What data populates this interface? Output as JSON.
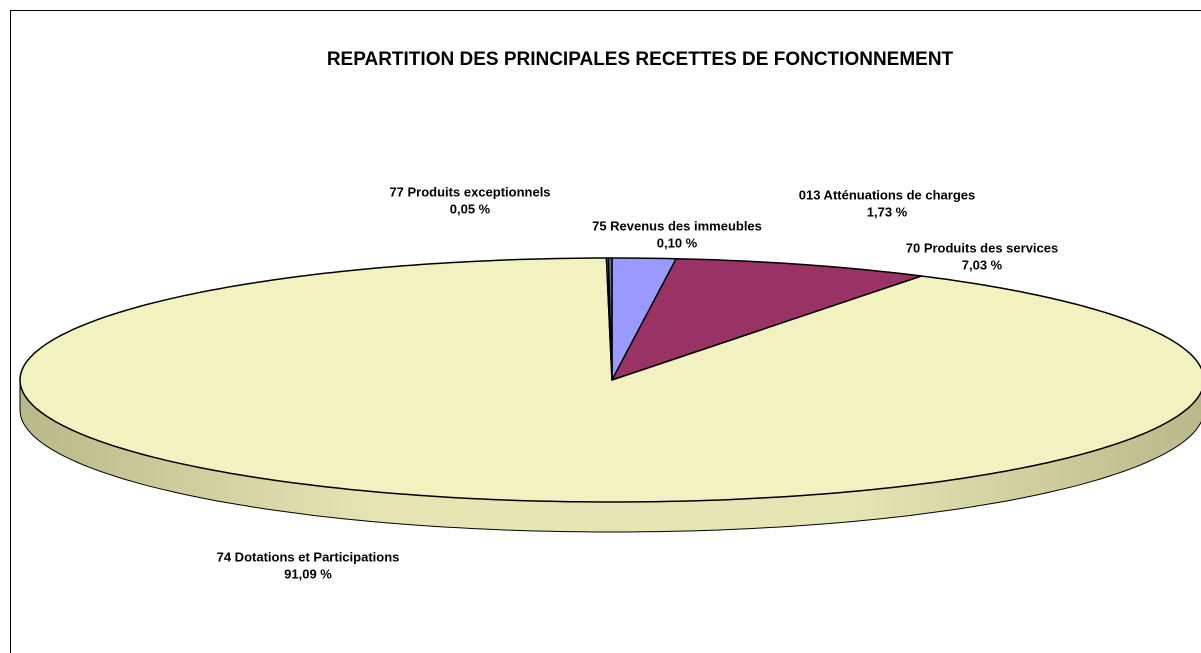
{
  "chart_data": {
    "type": "pie3d",
    "title": "REPARTITION DES PRINCIPALES RECETTES DE FONCTIONNEMENT",
    "categories": [
      "013 Atténuations de charges",
      "70 Produits des services",
      "74 Dotations et Participations",
      "77 Produits exceptionnels",
      "75 Revenus des immeubles"
    ],
    "values": [
      1.73,
      7.03,
      91.09,
      0.05,
      0.1
    ],
    "value_labels": [
      "1,73 %",
      "7,03 %",
      "91,09 %",
      "0,05 %",
      "0,10 %"
    ],
    "colors": [
      "#9999ff",
      "#993366",
      "#f2f2c0",
      "#ccffff",
      "#666699"
    ]
  }
}
